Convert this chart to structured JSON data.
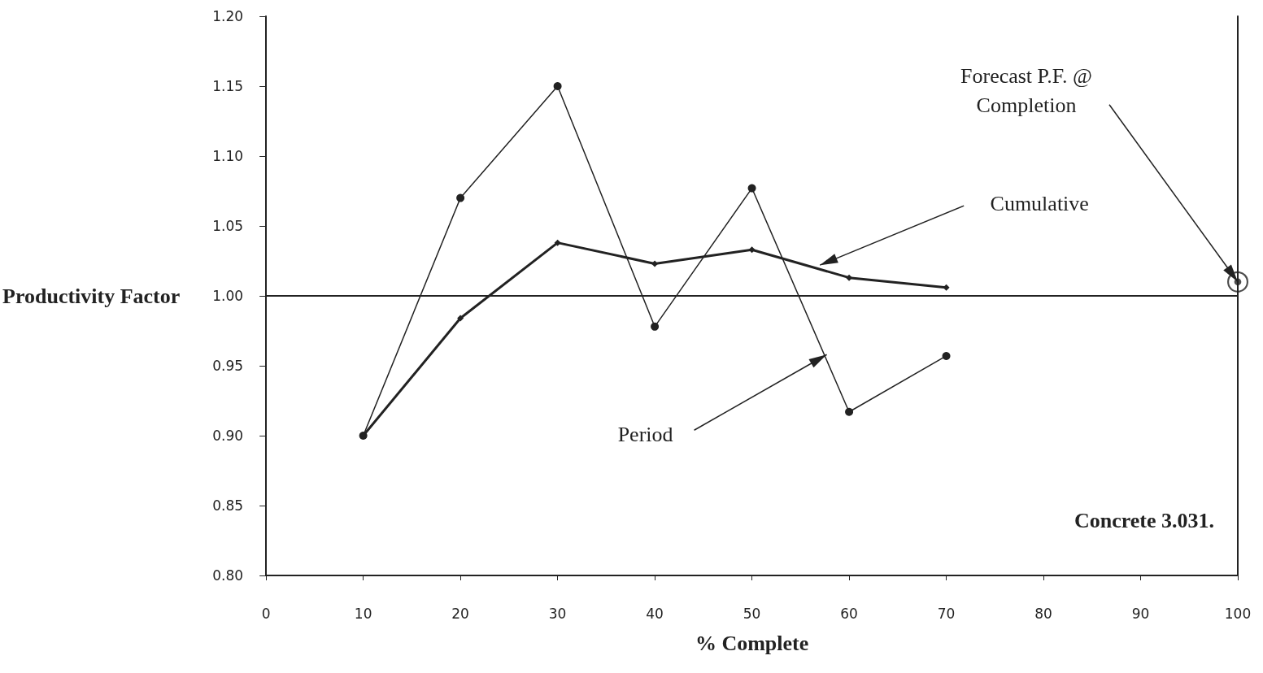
{
  "chart_data": {
    "type": "line",
    "xlabel": "% Complete",
    "ylabel": "Productivity Factor",
    "xlim": [
      0,
      100
    ],
    "xticks": [
      0,
      10,
      20,
      30,
      40,
      50,
      60,
      70,
      80,
      90,
      100
    ],
    "ylim": [
      0.8,
      1.2
    ],
    "yticks": [
      {
        "value": 0.8,
        "label": "0.80"
      },
      {
        "value": 0.85,
        "label": "0.85"
      },
      {
        "value": 0.9,
        "label": "0.90"
      },
      {
        "value": 0.95,
        "label": "0.95"
      },
      {
        "value": 1.0,
        "label": "1.00"
      },
      {
        "value": 1.05,
        "label": "1.05"
      },
      {
        "value": 1.1,
        "label": "1.10"
      },
      {
        "value": 1.15,
        "label": "1.15"
      },
      {
        "value": 1.2,
        "label": "1.20"
      }
    ],
    "grid": false,
    "marker": "circle",
    "line_style": "solid",
    "series": [
      {
        "color": "#222222",
        "x": [
          10,
          20,
          30,
          40,
          50,
          60,
          70
        ],
        "values": [
          0.9,
          1.07,
          1.15,
          0.978,
          1.077,
          0.917,
          0.957
        ]
      },
      {
        "color": "#222222",
        "marker": "diamond",
        "x": [
          10,
          20,
          30,
          40,
          50,
          60,
          70
        ],
        "values": [
          0.9,
          0.984,
          1.038,
          1.023,
          1.033,
          1.013,
          1.006
        ]
      },
      {
        "type": "scatter",
        "color": "#222222",
        "x": [
          100
        ],
        "values": [
          1.01
        ]
      }
    ],
    "ref_lines": [
      {
        "axis": "y",
        "value": 1.0
      }
    ],
    "annotations": [
      {
        "text": "Forecast P.F. @\nCompletion",
        "x": 100,
        "y": 1.01
      },
      {
        "text": "Cumulative",
        "x": 57,
        "y": 1.022
      },
      {
        "text": "Period",
        "x": 57.7,
        "y": 0.958
      },
      "Concrete 3.031."
    ]
  }
}
